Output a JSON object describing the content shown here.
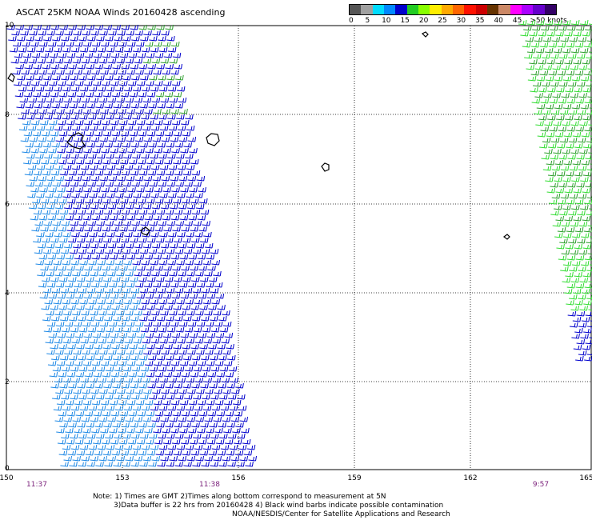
{
  "title": "ASCAT 25KM NOAA Winds 20160428 ascending",
  "legend": {
    "colors": [
      "#555555",
      "#a0a0a0",
      "#00dcff",
      "#0088ff",
      "#0000cc",
      "#22cc22",
      "#88ff00",
      "#ffee00",
      "#ffaa00",
      "#ff6600",
      "#ff1100",
      "#cc0000",
      "#663300",
      "#cc8866",
      "#ff00ff",
      "#aa00ff",
      "#6600cc",
      "#330066"
    ],
    "labels": [
      "0",
      "5",
      "10",
      "15",
      "20",
      "25",
      "30",
      "35",
      "40",
      "45",
      ">50 knots"
    ]
  },
  "axes": {
    "lat_labels": [
      "10",
      "8",
      "6",
      "4",
      "2",
      "0"
    ],
    "lon_labels": [
      "150",
      "153",
      "156",
      "159",
      "162",
      "165"
    ]
  },
  "times": [
    "11:37",
    "11:38",
    "9:57"
  ],
  "note": {
    "line1": "Note: 1) Times are GMT 2)Times along bottom correspond to measurement at 5N",
    "line2": "3)Data buffer is 22 hrs from 20160428 4) Black wind barbs indicate possible contamination",
    "line3": "NOAA/NESDIS/Center for Satellite Applications and Research"
  },
  "swath_colors": {
    "blue_light": "#1e88e5",
    "blue_dark": "#0000cc",
    "green": "#2e9e2e",
    "green_light": "#33dd33"
  }
}
